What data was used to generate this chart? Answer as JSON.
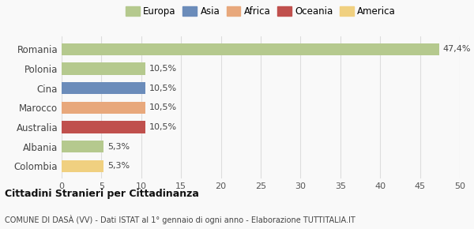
{
  "categories": [
    "Colombia",
    "Albania",
    "Australia",
    "Marocco",
    "Cina",
    "Polonia",
    "Romania"
  ],
  "values": [
    5.3,
    5.3,
    10.5,
    10.5,
    10.5,
    10.5,
    47.4
  ],
  "labels": [
    "5,3%",
    "5,3%",
    "10,5%",
    "10,5%",
    "10,5%",
    "10,5%",
    "47,4%"
  ],
  "bar_colors": [
    "#f0d080",
    "#b5c98e",
    "#c0504d",
    "#e8a87c",
    "#6b8cba",
    "#b5c98e",
    "#b5c98e"
  ],
  "continent_colors": {
    "Europa": "#b5c98e",
    "Asia": "#6b8cba",
    "Africa": "#e8a87c",
    "Oceania": "#c0504d",
    "America": "#f0d080"
  },
  "xlim": [
    0,
    50
  ],
  "xticks": [
    0,
    5,
    10,
    15,
    20,
    25,
    30,
    35,
    40,
    45,
    50
  ],
  "title": "Cittadini Stranieri per Cittadinanza",
  "subtitle": "COMUNE DI DASÀ (VV) - Dati ISTAT al 1° gennaio di ogni anno - Elaborazione TUTTITALIA.IT",
  "background_color": "#f9f9f9",
  "grid_color": "#dddddd",
  "bar_alpha": 1.0,
  "legend_order": [
    "Europa",
    "Asia",
    "Africa",
    "Oceania",
    "America"
  ]
}
